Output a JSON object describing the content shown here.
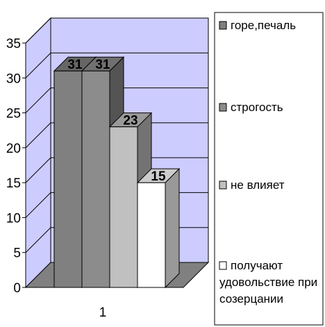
{
  "chart_data": {
    "type": "bar",
    "style": "3d-clustered-column",
    "categories": [
      "1"
    ],
    "series": [
      {
        "name": "горе,печаль",
        "values": [
          31
        ],
        "color": "#808080"
      },
      {
        "name": "строгость",
        "values": [
          31
        ],
        "color": "#8c8c8c"
      },
      {
        "name": "не влияет",
        "values": [
          23
        ],
        "color": "#c0c0c0"
      },
      {
        "name": "получают удовольствие при созерцании",
        "values": [
          15
        ],
        "color": "#ffffff"
      }
    ],
    "legend_lines": [
      [
        "горе,печаль"
      ],
      [
        "строгость"
      ],
      [
        "не влияет"
      ],
      [
        "получают",
        "удовольствие при",
        "созерцании"
      ]
    ],
    "y_ticks": [
      "0",
      "5",
      "10",
      "15",
      "20",
      "25",
      "30",
      "35"
    ],
    "ylim": [
      0,
      35
    ],
    "grid": true,
    "legend_position": "right",
    "wall_color": "#ccccff",
    "floor_color": "#808080"
  }
}
